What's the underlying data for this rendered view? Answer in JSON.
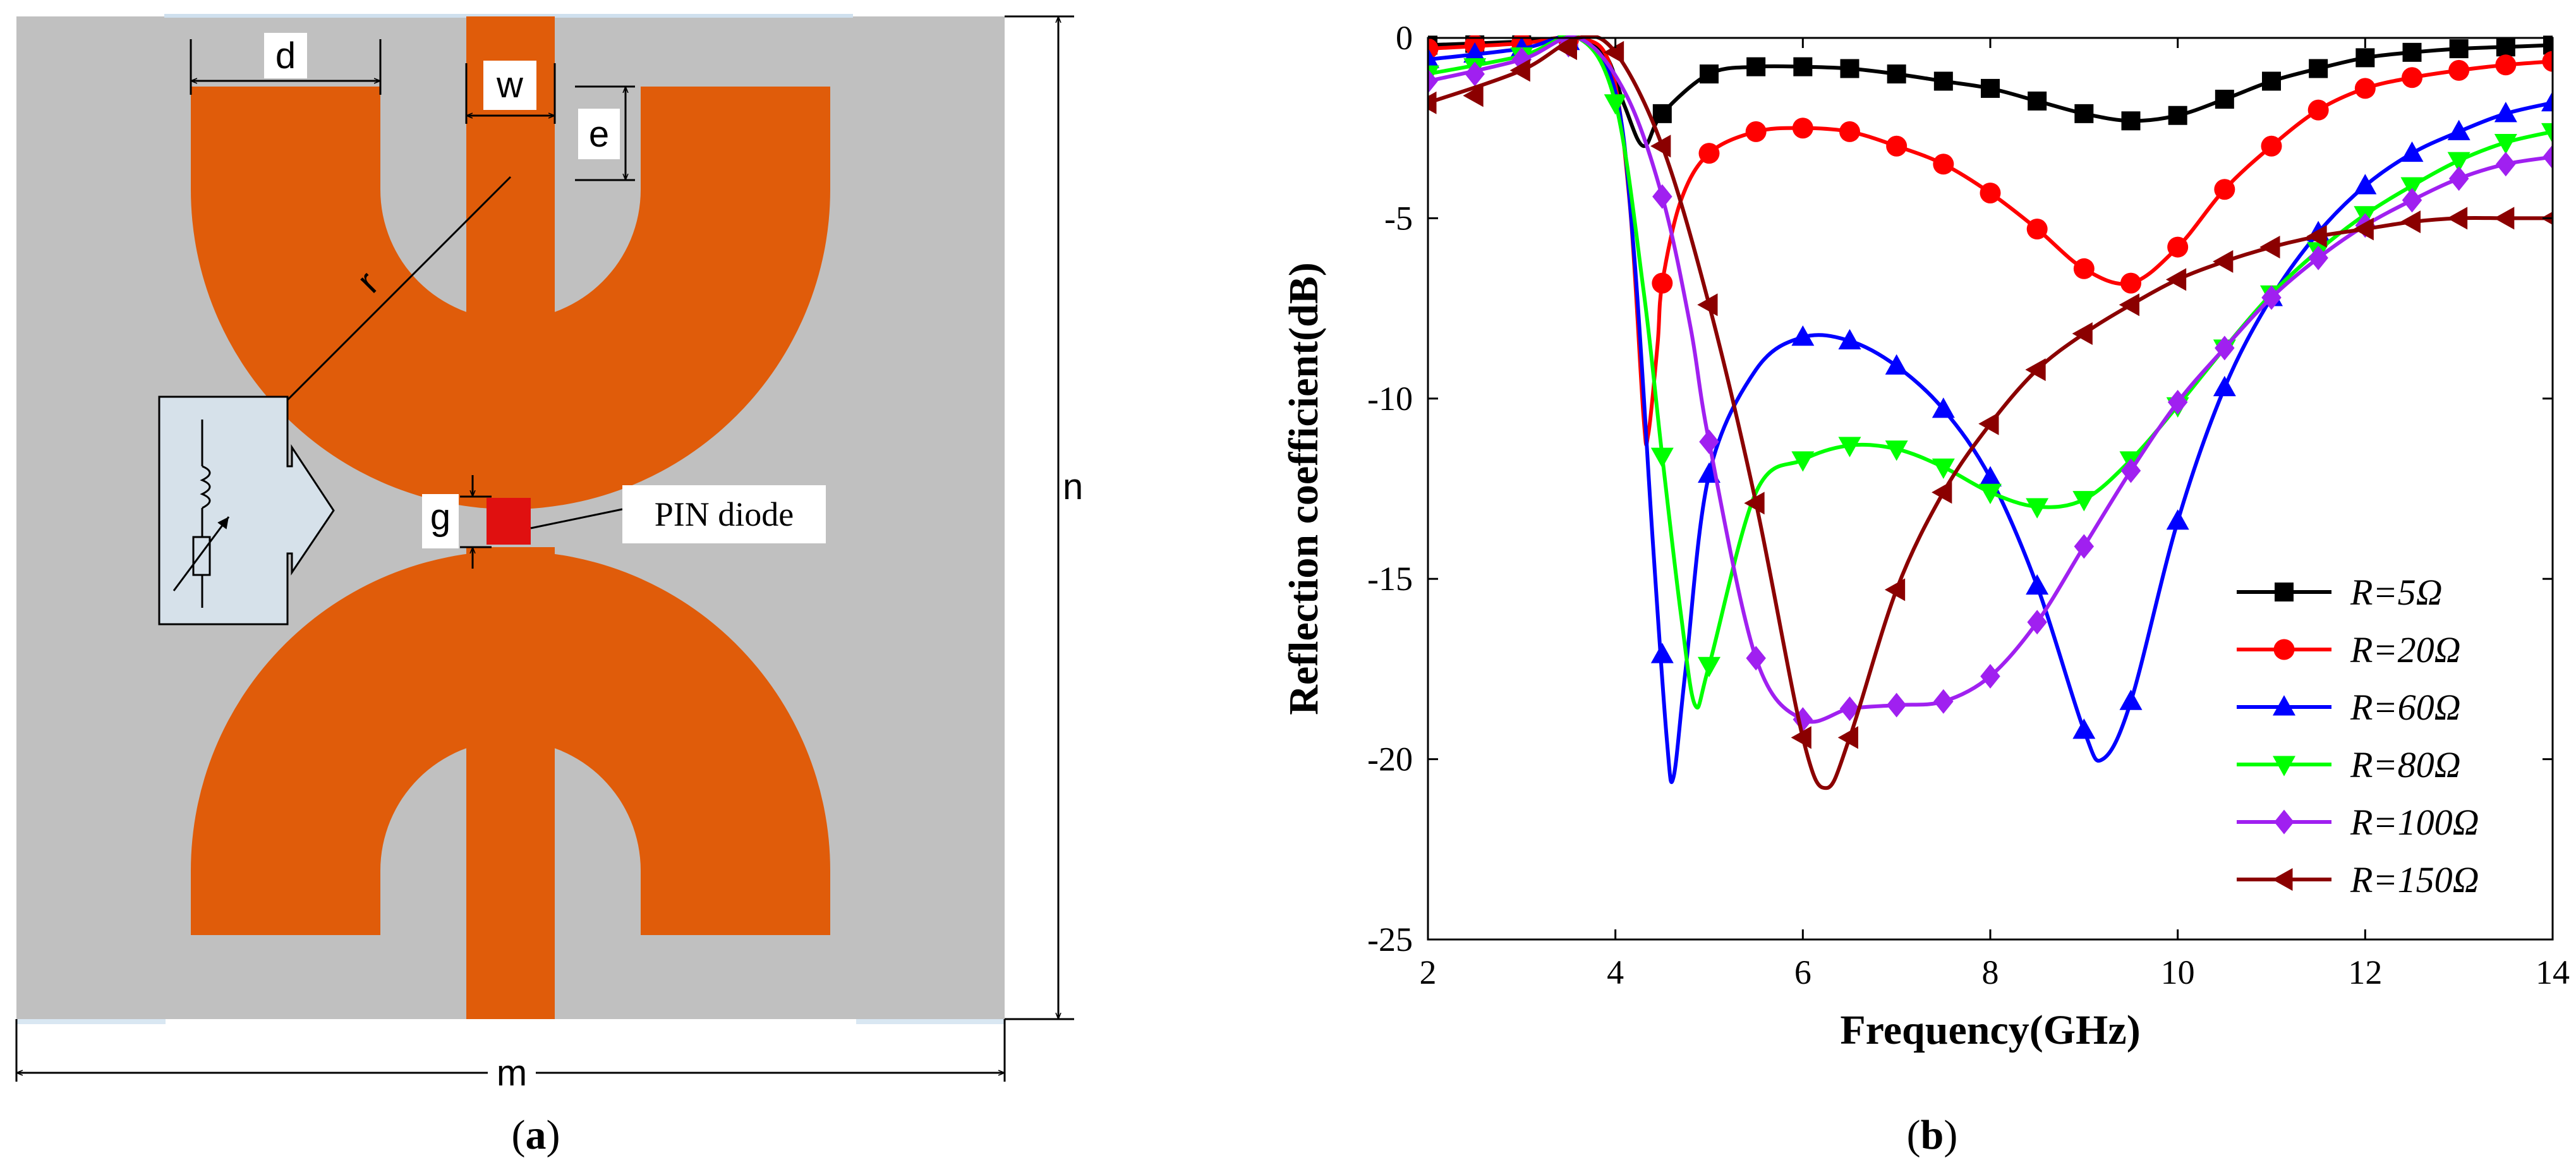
{
  "panel_a": {
    "caption_open": "(",
    "caption_letter": "a",
    "caption_close": ")",
    "dim_d": "d",
    "dim_w": "w",
    "dim_e": "e",
    "dim_r": "r",
    "dim_g": "g",
    "dim_n": "n",
    "dim_m": "m",
    "pin_label": "PIN diode",
    "colors": {
      "substrate": "#c0c0c0",
      "metal": "#e05c0a",
      "diode": "#e01010",
      "inset": "#d6e1ea"
    }
  },
  "panel_b": {
    "caption_open": "(",
    "caption_letter": "b",
    "caption_close": ")"
  },
  "chart_data": {
    "type": "line",
    "title": "",
    "xlabel": "Frequency(GHz)",
    "ylabel": "Reflection coefficient(dB)",
    "xlim": [
      2,
      14
    ],
    "ylim": [
      -25,
      0
    ],
    "xticks": [
      2,
      4,
      6,
      8,
      10,
      12,
      14
    ],
    "yticks": [
      0,
      -5,
      -10,
      -15,
      -20,
      -25
    ],
    "legend_position": "bottom-right",
    "series": [
      {
        "name": "R=5Ω",
        "color": "#000000",
        "marker": "square",
        "curve": [
          [
            2,
            -0.2
          ],
          [
            3,
            -0.1
          ],
          [
            3.6,
            0
          ],
          [
            3.9,
            -0.5
          ],
          [
            4.1,
            -1.9
          ],
          [
            4.3,
            -3.0
          ],
          [
            4.5,
            -2.1
          ],
          [
            5,
            -1.0
          ],
          [
            5.5,
            -0.8
          ],
          [
            6,
            -0.8
          ],
          [
            6.5,
            -0.85
          ],
          [
            7,
            -1.0
          ],
          [
            7.5,
            -1.2
          ],
          [
            8,
            -1.4
          ],
          [
            8.5,
            -1.75
          ],
          [
            9,
            -2.1
          ],
          [
            9.5,
            -2.3
          ],
          [
            10,
            -2.15
          ],
          [
            10.5,
            -1.7
          ],
          [
            11,
            -1.2
          ],
          [
            11.5,
            -0.85
          ],
          [
            12,
            -0.55
          ],
          [
            12.5,
            -0.4
          ],
          [
            13,
            -0.3
          ],
          [
            13.5,
            -0.25
          ],
          [
            14,
            -0.2
          ]
        ],
        "markers": [
          [
            2,
            -0.2
          ],
          [
            2.5,
            -0.15
          ],
          [
            3,
            -0.1
          ],
          [
            3.5,
            -0.05
          ],
          [
            4.5,
            -2.1
          ],
          [
            5,
            -1.0
          ],
          [
            5.5,
            -0.8
          ],
          [
            6,
            -0.8
          ],
          [
            6.5,
            -0.85
          ],
          [
            7,
            -1.0
          ],
          [
            7.5,
            -1.2
          ],
          [
            8,
            -1.4
          ],
          [
            8.5,
            -1.75
          ],
          [
            9,
            -2.1
          ],
          [
            9.5,
            -2.3
          ],
          [
            10,
            -2.15
          ],
          [
            10.5,
            -1.7
          ],
          [
            11,
            -1.2
          ],
          [
            11.5,
            -0.85
          ],
          [
            12,
            -0.55
          ],
          [
            12.5,
            -0.4
          ],
          [
            13,
            -0.3
          ],
          [
            13.5,
            -0.25
          ],
          [
            14,
            -0.2
          ]
        ]
      },
      {
        "name": "R=20Ω",
        "color": "#ff0000",
        "marker": "circle",
        "curve": [
          [
            2,
            -0.3
          ],
          [
            3,
            -0.15
          ],
          [
            3.6,
            0
          ],
          [
            3.95,
            -0.8
          ],
          [
            4.15,
            -4.5
          ],
          [
            4.3,
            -10.5
          ],
          [
            4.35,
            -11.0
          ],
          [
            4.45,
            -8.5
          ],
          [
            4.5,
            -6.8
          ],
          [
            4.7,
            -4.5
          ],
          [
            5,
            -3.2
          ],
          [
            5.5,
            -2.6
          ],
          [
            6,
            -2.5
          ],
          [
            6.5,
            -2.6
          ],
          [
            7,
            -3.0
          ],
          [
            7.5,
            -3.5
          ],
          [
            8,
            -4.3
          ],
          [
            8.5,
            -5.3
          ],
          [
            9,
            -6.4
          ],
          [
            9.5,
            -6.8
          ],
          [
            10,
            -5.8
          ],
          [
            10.5,
            -4.2
          ],
          [
            11,
            -3.0
          ],
          [
            11.5,
            -2.0
          ],
          [
            12,
            -1.4
          ],
          [
            12.5,
            -1.1
          ],
          [
            13,
            -0.9
          ],
          [
            13.5,
            -0.75
          ],
          [
            14,
            -0.65
          ]
        ],
        "markers": [
          [
            2,
            -0.3
          ],
          [
            2.5,
            -0.2
          ],
          [
            3,
            -0.15
          ],
          [
            3.5,
            -0.05
          ],
          [
            4.5,
            -6.8
          ],
          [
            5,
            -3.2
          ],
          [
            5.5,
            -2.6
          ],
          [
            6,
            -2.5
          ],
          [
            6.5,
            -2.6
          ],
          [
            7,
            -3.0
          ],
          [
            7.5,
            -3.5
          ],
          [
            8,
            -4.3
          ],
          [
            8.5,
            -5.3
          ],
          [
            9,
            -6.4
          ],
          [
            9.5,
            -6.8
          ],
          [
            10,
            -5.8
          ],
          [
            10.5,
            -4.2
          ],
          [
            11,
            -3.0
          ],
          [
            11.5,
            -2.0
          ],
          [
            12,
            -1.4
          ],
          [
            12.5,
            -1.1
          ],
          [
            13,
            -0.9
          ],
          [
            13.5,
            -0.75
          ],
          [
            14,
            -0.65
          ]
        ]
      },
      {
        "name": "R=60Ω",
        "color": "#0000ff",
        "marker": "triangle-up",
        "curve": [
          [
            2,
            -0.6
          ],
          [
            3,
            -0.3
          ],
          [
            3.6,
            0
          ],
          [
            4,
            -1.5
          ],
          [
            4.2,
            -6.0
          ],
          [
            4.4,
            -14.0
          ],
          [
            4.55,
            -19.5
          ],
          [
            4.62,
            -20.5
          ],
          [
            4.75,
            -17.5
          ],
          [
            5,
            -12.1
          ],
          [
            5.5,
            -9.2
          ],
          [
            6,
            -8.3
          ],
          [
            6.5,
            -8.4
          ],
          [
            7,
            -9.1
          ],
          [
            7.5,
            -10.3
          ],
          [
            8,
            -12.2
          ],
          [
            8.5,
            -15.2
          ],
          [
            9,
            -19.2
          ],
          [
            9.2,
            -20.0
          ],
          [
            9.5,
            -18.4
          ],
          [
            10,
            -13.4
          ],
          [
            10.5,
            -9.7
          ],
          [
            11,
            -7.2
          ],
          [
            11.5,
            -5.4
          ],
          [
            12,
            -4.1
          ],
          [
            12.5,
            -3.2
          ],
          [
            13,
            -2.6
          ],
          [
            13.5,
            -2.1
          ],
          [
            14,
            -1.8
          ]
        ],
        "markers": [
          [
            2,
            -0.6
          ],
          [
            2.5,
            -0.45
          ],
          [
            3,
            -0.3
          ],
          [
            3.5,
            -0.1
          ],
          [
            4.5,
            -17.1
          ],
          [
            5,
            -12.1
          ],
          [
            6,
            -8.3
          ],
          [
            6.5,
            -8.4
          ],
          [
            7,
            -9.1
          ],
          [
            7.5,
            -10.3
          ],
          [
            8,
            -12.2
          ],
          [
            8.5,
            -15.2
          ],
          [
            9,
            -19.2
          ],
          [
            9.5,
            -18.4
          ],
          [
            10,
            -13.4
          ],
          [
            10.5,
            -9.7
          ],
          [
            11,
            -7.2
          ],
          [
            11.5,
            -5.4
          ],
          [
            12,
            -4.1
          ],
          [
            12.5,
            -3.2
          ],
          [
            13,
            -2.6
          ],
          [
            13.5,
            -2.1
          ],
          [
            14,
            -1.8
          ]
        ]
      },
      {
        "name": "R=80Ω",
        "color": "#00ff00",
        "marker": "triangle-down",
        "curve": [
          [
            2,
            -1.0
          ],
          [
            3,
            -0.5
          ],
          [
            3.6,
            0
          ],
          [
            4,
            -1.8
          ],
          [
            4.3,
            -7.0
          ],
          [
            4.5,
            -11.6
          ],
          [
            4.7,
            -16.0
          ],
          [
            4.85,
            -18.5
          ],
          [
            5,
            -17.4
          ],
          [
            5.5,
            -12.6
          ],
          [
            6,
            -11.7
          ],
          [
            6.5,
            -11.3
          ],
          [
            7,
            -11.4
          ],
          [
            7.5,
            -11.9
          ],
          [
            8,
            -12.6
          ],
          [
            8.5,
            -13.0
          ],
          [
            9,
            -12.8
          ],
          [
            9.5,
            -11.7
          ],
          [
            10,
            -10.2
          ],
          [
            10.5,
            -8.6
          ],
          [
            11,
            -7.1
          ],
          [
            11.5,
            -5.9
          ],
          [
            12,
            -4.9
          ],
          [
            12.5,
            -4.1
          ],
          [
            13,
            -3.4
          ],
          [
            13.5,
            -2.9
          ],
          [
            14,
            -2.6
          ]
        ],
        "markers": [
          [
            2,
            -1.0
          ],
          [
            2.5,
            -0.8
          ],
          [
            3,
            -0.5
          ],
          [
            3.5,
            -0.15
          ],
          [
            4,
            -1.8
          ],
          [
            4.5,
            -11.6
          ],
          [
            5,
            -17.4
          ],
          [
            6,
            -11.7
          ],
          [
            6.5,
            -11.3
          ],
          [
            7,
            -11.4
          ],
          [
            7.5,
            -11.9
          ],
          [
            8,
            -12.6
          ],
          [
            8.5,
            -13.0
          ],
          [
            9,
            -12.8
          ],
          [
            9.5,
            -11.7
          ],
          [
            10,
            -10.2
          ],
          [
            10.5,
            -8.6
          ],
          [
            11,
            -7.1
          ],
          [
            11.5,
            -5.9
          ],
          [
            12,
            -4.9
          ],
          [
            12.5,
            -4.1
          ],
          [
            13,
            -3.4
          ],
          [
            13.5,
            -2.9
          ],
          [
            14,
            -2.6
          ]
        ]
      },
      {
        "name": "R=100Ω",
        "color": "#a020f0",
        "marker": "diamond",
        "curve": [
          [
            2,
            -1.2
          ],
          [
            3,
            -0.6
          ],
          [
            3.6,
            0
          ],
          [
            4.1,
            -1.5
          ],
          [
            4.5,
            -4.4
          ],
          [
            4.8,
            -8.0
          ],
          [
            5,
            -11.2
          ],
          [
            5.5,
            -17.2
          ],
          [
            6,
            -18.9
          ],
          [
            6.5,
            -18.6
          ],
          [
            7,
            -18.5
          ],
          [
            7.5,
            -18.4
          ],
          [
            8,
            -17.7
          ],
          [
            8.5,
            -16.2
          ],
          [
            9,
            -14.1
          ],
          [
            9.5,
            -12.0
          ],
          [
            10,
            -10.1
          ],
          [
            10.5,
            -8.6
          ],
          [
            11,
            -7.2
          ],
          [
            11.5,
            -6.1
          ],
          [
            12,
            -5.2
          ],
          [
            12.5,
            -4.5
          ],
          [
            13,
            -3.9
          ],
          [
            13.5,
            -3.5
          ],
          [
            14,
            -3.3
          ]
        ],
        "markers": [
          [
            2,
            -1.2
          ],
          [
            2.5,
            -1.0
          ],
          [
            3,
            -0.6
          ],
          [
            3.5,
            -0.2
          ],
          [
            4.5,
            -4.4
          ],
          [
            5,
            -11.2
          ],
          [
            5.5,
            -17.2
          ],
          [
            6,
            -18.9
          ],
          [
            6.5,
            -18.6
          ],
          [
            7,
            -18.5
          ],
          [
            7.5,
            -18.4
          ],
          [
            8,
            -17.7
          ],
          [
            8.5,
            -16.2
          ],
          [
            9,
            -14.1
          ],
          [
            9.5,
            -12.0
          ],
          [
            10,
            -10.1
          ],
          [
            10.5,
            -8.6
          ],
          [
            11,
            -7.2
          ],
          [
            11.5,
            -6.1
          ],
          [
            12,
            -5.2
          ],
          [
            12.5,
            -4.5
          ],
          [
            13,
            -3.9
          ],
          [
            13.5,
            -3.5
          ],
          [
            14,
            -3.3
          ]
        ]
      },
      {
        "name": "R=150Ω",
        "color": "#8b0000",
        "marker": "triangle-left",
        "curve": [
          [
            2,
            -1.8
          ],
          [
            3,
            -0.9
          ],
          [
            3.6,
            0
          ],
          [
            4,
            -0.4
          ],
          [
            4.5,
            -3.0
          ],
          [
            5,
            -7.4
          ],
          [
            5.5,
            -12.9
          ],
          [
            6,
            -19.4
          ],
          [
            6.25,
            -20.8
          ],
          [
            6.5,
            -19.4
          ],
          [
            7,
            -15.3
          ],
          [
            7.5,
            -12.6
          ],
          [
            8,
            -10.7
          ],
          [
            8.5,
            -9.2
          ],
          [
            9,
            -8.2
          ],
          [
            9.5,
            -7.4
          ],
          [
            10,
            -6.7
          ],
          [
            10.5,
            -6.2
          ],
          [
            11,
            -5.8
          ],
          [
            11.5,
            -5.5
          ],
          [
            12,
            -5.3
          ],
          [
            12.5,
            -5.1
          ],
          [
            13,
            -5.0
          ],
          [
            13.5,
            -5.0
          ],
          [
            14,
            -5.0
          ]
        ],
        "markers": [
          [
            2,
            -1.8
          ],
          [
            2.5,
            -1.6
          ],
          [
            3,
            -0.9
          ],
          [
            3.5,
            -0.3
          ],
          [
            4,
            -0.4
          ],
          [
            4.5,
            -3.0
          ],
          [
            5,
            -7.4
          ],
          [
            5.5,
            -12.9
          ],
          [
            6,
            -19.4
          ],
          [
            6.5,
            -19.4
          ],
          [
            7,
            -15.3
          ],
          [
            7.5,
            -12.6
          ],
          [
            8,
            -10.7
          ],
          [
            8.5,
            -9.2
          ],
          [
            9,
            -8.2
          ],
          [
            9.5,
            -7.4
          ],
          [
            10,
            -6.7
          ],
          [
            10.5,
            -6.2
          ],
          [
            11,
            -5.8
          ],
          [
            11.5,
            -5.5
          ],
          [
            12,
            -5.3
          ],
          [
            12.5,
            -5.1
          ],
          [
            13,
            -5.0
          ],
          [
            13.5,
            -5.0
          ],
          [
            14,
            -5.0
          ]
        ]
      }
    ]
  }
}
